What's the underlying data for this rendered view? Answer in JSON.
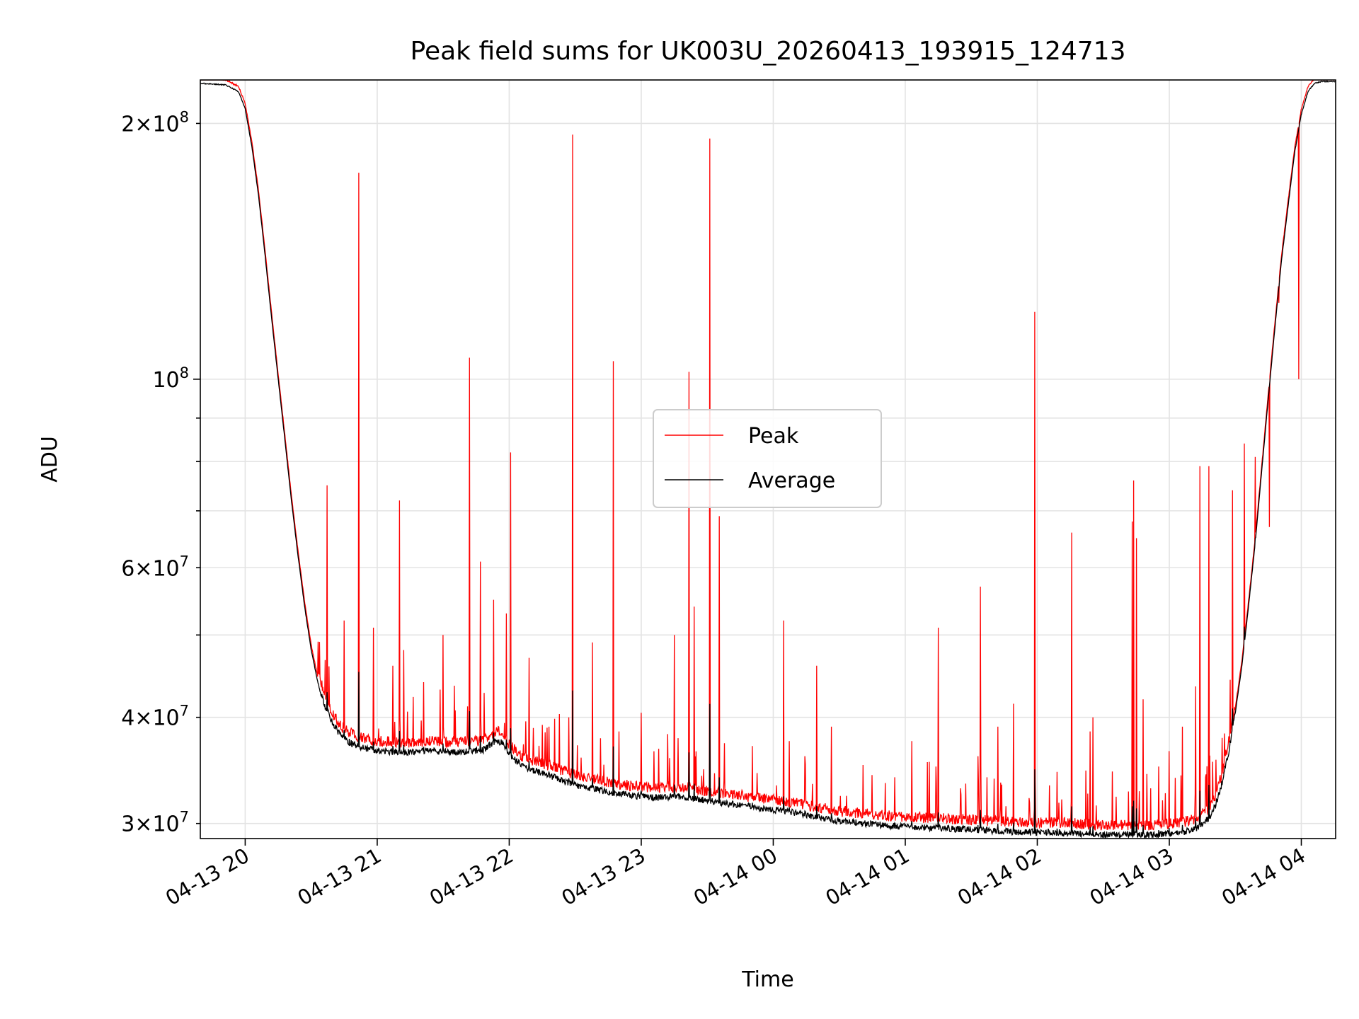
{
  "chart_data": {
    "type": "line",
    "title": "Peak field sums for UK003U_20260413_193915_124713",
    "xlabel": "Time",
    "ylabel": "ADU",
    "yscale": "log",
    "xlim": [
      19.66,
      28.26
    ],
    "ylim": [
      28800000,
      225000000
    ],
    "grid": true,
    "legend": {
      "location": "center",
      "entries": [
        "Peak",
        "Average"
      ]
    },
    "x_ticks": [
      {
        "value": 20,
        "label": "04-13 20"
      },
      {
        "value": 21,
        "label": "04-13 21"
      },
      {
        "value": 22,
        "label": "04-13 22"
      },
      {
        "value": 23,
        "label": "04-13 23"
      },
      {
        "value": 24,
        "label": "04-14 00"
      },
      {
        "value": 25,
        "label": "04-14 01"
      },
      {
        "value": 26,
        "label": "04-14 02"
      },
      {
        "value": 27,
        "label": "04-14 03"
      },
      {
        "value": 28,
        "label": "04-14 04"
      }
    ],
    "y_ticks_major": [
      {
        "value": 100000000,
        "mant": "",
        "exp": "8"
      }
    ],
    "y_ticks_minor_labeled": [
      {
        "value": 30000000,
        "mant": "3",
        "exp": "7"
      },
      {
        "value": 40000000,
        "mant": "4",
        "exp": "7"
      },
      {
        "value": 60000000,
        "mant": "6",
        "exp": "7"
      },
      {
        "value": 200000000,
        "mant": "2",
        "exp": "8"
      }
    ],
    "y_ticks_minor_unlabeled": [
      50000000,
      70000000,
      80000000,
      90000000
    ],
    "baseline_average": {
      "x": [
        19.66,
        19.85,
        19.95,
        20.0,
        20.05,
        20.1,
        20.15,
        20.2,
        20.25,
        20.3,
        20.35,
        20.4,
        20.45,
        20.5,
        20.55,
        20.6,
        20.65,
        20.7,
        20.75,
        20.8,
        20.85,
        20.9,
        21.0,
        21.2,
        21.4,
        21.6,
        21.8,
        21.9,
        21.95,
        22.0,
        22.1,
        22.3,
        22.5,
        22.7,
        22.9,
        23.1,
        23.3,
        23.5,
        23.7,
        23.9,
        24.1,
        24.3,
        24.5,
        24.7,
        24.9,
        25.1,
        25.3,
        25.5,
        25.7,
        25.9,
        26.1,
        26.3,
        26.5,
        26.7,
        26.9,
        27.0,
        27.1,
        27.2,
        27.3,
        27.35,
        27.4,
        27.45,
        27.5,
        27.55,
        27.6,
        27.65,
        27.7,
        27.75,
        27.8,
        27.85,
        27.9,
        27.95,
        28.0,
        28.05,
        28.1,
        28.15,
        28.2,
        28.26
      ],
      "values": [
        223000000,
        222000000,
        218000000,
        208000000,
        188000000,
        165000000,
        140000000,
        118000000,
        100000000,
        85000000,
        72000000,
        62000000,
        54000000,
        48000000,
        44000000,
        41500000,
        39700000,
        38500000,
        37800000,
        37300000,
        37000000,
        36800000,
        36500000,
        36400000,
        36500000,
        36400000,
        36600000,
        37500000,
        37400000,
        36200000,
        35000000,
        34200000,
        33300000,
        32800000,
        32400000,
        32200000,
        32300000,
        31900000,
        31600000,
        31300000,
        31000000,
        30600000,
        30200000,
        30000000,
        29800000,
        29700000,
        29600000,
        29500000,
        29400000,
        29300000,
        29300000,
        29200000,
        29100000,
        29100000,
        29100000,
        29200000,
        29300000,
        29600000,
        30400000,
        31500000,
        33500000,
        36500000,
        40500000,
        46000000,
        54000000,
        64000000,
        78000000,
        95000000,
        115000000,
        138000000,
        160000000,
        185000000,
        205000000,
        218000000,
        223000000,
        224000000,
        224000000,
        224000000
      ]
    },
    "series": [
      {
        "name": "Peak",
        "color": "#ff0000",
        "spikes": [
          {
            "x": 20.62,
            "peak": 75000000
          },
          {
            "x": 20.75,
            "peak": 52000000
          },
          {
            "x": 20.86,
            "peak": 175000000
          },
          {
            "x": 20.97,
            "peak": 51000000
          },
          {
            "x": 21.12,
            "peak": 46000000
          },
          {
            "x": 21.17,
            "peak": 72000000
          },
          {
            "x": 21.2,
            "peak": 48000000
          },
          {
            "x": 21.35,
            "peak": 44000000
          },
          {
            "x": 21.5,
            "peak": 50000000
          },
          {
            "x": 21.7,
            "peak": 106000000
          },
          {
            "x": 21.78,
            "peak": 61000000
          },
          {
            "x": 21.88,
            "peak": 55000000
          },
          {
            "x": 21.98,
            "peak": 53000000
          },
          {
            "x": 22.01,
            "peak": 82000000
          },
          {
            "x": 22.15,
            "peak": 47000000
          },
          {
            "x": 22.3,
            "peak": 39000000
          },
          {
            "x": 22.45,
            "peak": 40000000
          },
          {
            "x": 22.48,
            "peak": 194000000
          },
          {
            "x": 22.63,
            "peak": 49000000
          },
          {
            "x": 22.79,
            "peak": 105000000
          },
          {
            "x": 23.0,
            "peak": 40500000
          },
          {
            "x": 23.25,
            "peak": 50000000
          },
          {
            "x": 23.36,
            "peak": 102000000
          },
          {
            "x": 23.4,
            "peak": 54000000
          },
          {
            "x": 23.52,
            "peak": 192000000
          },
          {
            "x": 23.59,
            "peak": 69000000
          },
          {
            "x": 23.84,
            "peak": 37000000
          },
          {
            "x": 24.08,
            "peak": 52000000
          },
          {
            "x": 24.12,
            "peak": 37500000
          },
          {
            "x": 24.24,
            "peak": 36000000
          },
          {
            "x": 24.33,
            "peak": 46000000
          },
          {
            "x": 24.44,
            "peak": 39000000
          },
          {
            "x": 24.92,
            "peak": 34000000
          },
          {
            "x": 25.05,
            "peak": 37500000
          },
          {
            "x": 25.25,
            "peak": 51000000
          },
          {
            "x": 25.42,
            "peak": 33000000
          },
          {
            "x": 25.55,
            "peak": 36000000
          },
          {
            "x": 25.57,
            "peak": 57000000
          },
          {
            "x": 25.62,
            "peak": 34000000
          },
          {
            "x": 25.7,
            "peak": 39000000
          },
          {
            "x": 25.82,
            "peak": 41500000
          },
          {
            "x": 25.98,
            "peak": 120000000
          },
          {
            "x": 26.15,
            "peak": 34500000
          },
          {
            "x": 26.26,
            "peak": 66000000
          },
          {
            "x": 26.4,
            "peak": 38500000
          },
          {
            "x": 26.42,
            "peak": 40000000
          },
          {
            "x": 26.72,
            "peak": 68000000
          },
          {
            "x": 26.73,
            "peak": 76000000
          },
          {
            "x": 26.75,
            "peak": 65000000
          },
          {
            "x": 26.8,
            "peak": 42000000
          },
          {
            "x": 26.86,
            "peak": 33000000
          },
          {
            "x": 26.92,
            "peak": 35000000
          },
          {
            "x": 27.0,
            "peak": 36500000
          },
          {
            "x": 27.1,
            "peak": 39000000
          },
          {
            "x": 27.2,
            "peak": 43500000
          },
          {
            "x": 27.23,
            "peak": 79000000
          },
          {
            "x": 27.3,
            "peak": 79000000
          },
          {
            "x": 27.48,
            "peak": 74000000
          },
          {
            "x": 27.57,
            "peak": 84000000
          },
          {
            "x": 27.65,
            "peak": 81000000
          },
          {
            "x": 27.76,
            "peak": 67000000
          },
          {
            "x": 27.83,
            "peak": 123000000
          },
          {
            "x": 27.98,
            "peak": 100000000
          }
        ]
      },
      {
        "name": "Average",
        "color": "#000000"
      }
    ]
  }
}
